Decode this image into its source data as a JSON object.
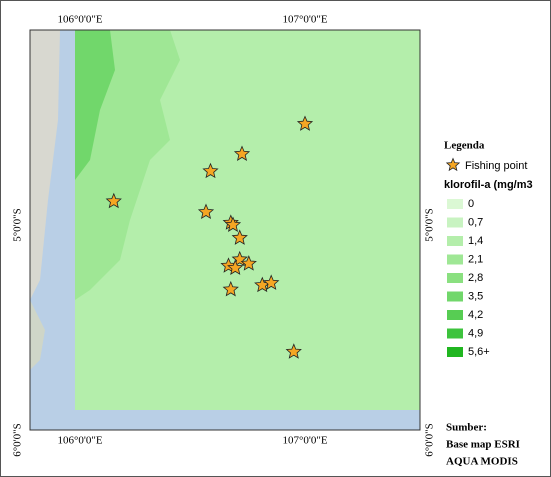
{
  "map": {
    "lon_labels": [
      {
        "value": 106,
        "label": "106°0'0\"E"
      },
      {
        "value": 107,
        "label": "107°0'0\"E"
      }
    ],
    "lat_labels": [
      {
        "value": -5,
        "label": "5°0'0\"S"
      },
      {
        "value": -6,
        "label": "6°0'0\"S"
      }
    ],
    "fishing_points": [
      {
        "lon": 107.0,
        "lat": -4.53
      },
      {
        "lon": 106.72,
        "lat": -4.67
      },
      {
        "lon": 106.58,
        "lat": -4.75
      },
      {
        "lon": 106.15,
        "lat": -4.89
      },
      {
        "lon": 106.56,
        "lat": -4.94
      },
      {
        "lon": 106.67,
        "lat": -4.99
      },
      {
        "lon": 106.68,
        "lat": -5.0
      },
      {
        "lon": 106.71,
        "lat": -5.06
      },
      {
        "lon": 106.71,
        "lat": -5.16
      },
      {
        "lon": 106.66,
        "lat": -5.19
      },
      {
        "lon": 106.75,
        "lat": -5.18
      },
      {
        "lon": 106.69,
        "lat": -5.2
      },
      {
        "lon": 106.67,
        "lat": -5.3
      },
      {
        "lon": 106.81,
        "lat": -5.28
      },
      {
        "lon": 106.85,
        "lat": -5.27
      },
      {
        "lon": 106.95,
        "lat": -5.59
      }
    ],
    "point_color": "#f5a623"
  },
  "legend": {
    "title": "Legenda",
    "point_label": "Fishing point",
    "scale_title": "klorofil-a (mg/m3",
    "classes": [
      {
        "label": "0",
        "color": "#dbf8d4"
      },
      {
        "label": "0,7",
        "color": "#c8f3c1"
      },
      {
        "label": "1,4",
        "color": "#b4eeab"
      },
      {
        "label": "2,1",
        "color": "#9fe795"
      },
      {
        "label": "2,8",
        "color": "#8ae080"
      },
      {
        "label": "3,5",
        "color": "#71d76b"
      },
      {
        "label": "4,2",
        "color": "#57cd53"
      },
      {
        "label": "4,9",
        "color": "#3dc33d"
      },
      {
        "label": "5,6+",
        "color": "#20b620"
      }
    ]
  },
  "source": {
    "title": "Sumber:",
    "lines": [
      "Base map ESRI",
      "AQUA MODIS"
    ]
  }
}
